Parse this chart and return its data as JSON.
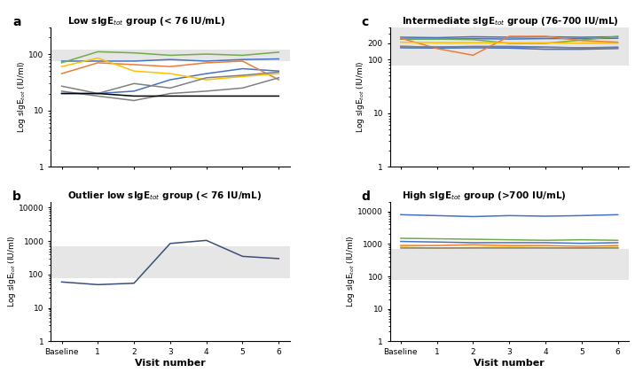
{
  "x_labels": [
    "Baseline",
    "1",
    "2",
    "3",
    "4",
    "5",
    "6"
  ],
  "x_vals": [
    0,
    1,
    2,
    3,
    4,
    5,
    6
  ],
  "panel_a_title": "Low sIgE$_{tot}$ group (< 76 IU/mL)",
  "panel_a_shading": [
    76,
    120
  ],
  "panel_a_lines": [
    {
      "color": "#4472C4",
      "data": [
        75,
        75,
        75,
        80,
        75,
        80,
        82
      ]
    },
    {
      "color": "#4472C4",
      "data": [
        20,
        20,
        22,
        35,
        45,
        55,
        50
      ]
    },
    {
      "color": "#70AD47",
      "data": [
        70,
        110,
        105,
        95,
        100,
        95,
        108
      ]
    },
    {
      "color": "#ED7D31",
      "data": [
        45,
        70,
        65,
        60,
        70,
        75,
        35
      ]
    },
    {
      "color": "#FFC000",
      "data": [
        60,
        85,
        50,
        45,
        35,
        40,
        45
      ]
    },
    {
      "color": "#808080",
      "data": [
        27,
        20,
        30,
        25,
        38,
        42,
        48
      ]
    },
    {
      "color": "#808080",
      "data": [
        22,
        18,
        15,
        20,
        22,
        25,
        38
      ]
    },
    {
      "color": "#000000",
      "data": [
        20,
        20,
        18,
        18,
        18,
        18,
        18
      ]
    }
  ],
  "panel_b_title": "Outlier low sIgE$_{tot}$ group (< 76 IU/mL)",
  "panel_b_shading": [
    76,
    700
  ],
  "panel_b_line": {
    "color": "#3B4F7A",
    "data": [
      60,
      50,
      55,
      850,
      1050,
      350,
      300
    ]
  },
  "panel_b_x_vals": [
    0,
    1,
    2,
    3,
    4,
    5,
    6
  ],
  "panel_c_title": "Intermediate sIgE$_{tot}$ group (76-700 IU/mL)",
  "panel_c_shading": [
    76,
    700
  ],
  "panel_c_lines": [
    {
      "color": "#4472C4",
      "data": [
        260,
        255,
        265,
        260,
        265,
        260,
        265
      ]
    },
    {
      "color": "#4472C4",
      "data": [
        240,
        240,
        245,
        240,
        245,
        245,
        248
      ]
    },
    {
      "color": "#4472C4",
      "data": [
        175,
        170,
        175,
        175,
        170,
        165,
        170
      ]
    },
    {
      "color": "#4472C4",
      "data": [
        165,
        163,
        165,
        163,
        155,
        155,
        160
      ]
    },
    {
      "color": "#70AD47",
      "data": [
        240,
        240,
        235,
        200,
        200,
        230,
        270
      ]
    },
    {
      "color": "#ED7D31",
      "data": [
        250,
        160,
        120,
        270,
        270,
        225,
        210
      ]
    },
    {
      "color": "#FFC000",
      "data": [
        210,
        205,
        205,
        205,
        205,
        200,
        200
      ]
    },
    {
      "color": "#808080",
      "data": [
        175,
        170,
        172,
        170,
        168,
        165,
        165
      ]
    }
  ],
  "panel_d_title": "High sIgE$_{tot}$ group (>700 IU/mL)",
  "panel_d_shading": [
    76,
    700
  ],
  "panel_d_lines": [
    {
      "color": "#4472C4",
      "data": [
        8000,
        7500,
        7000,
        7500,
        7200,
        7500,
        8000
      ]
    },
    {
      "color": "#4472C4",
      "data": [
        1200,
        1150,
        1100,
        1100,
        1100,
        1050,
        1100
      ]
    },
    {
      "color": "#70AD47",
      "data": [
        1500,
        1450,
        1400,
        1350,
        1300,
        1350,
        1300
      ]
    },
    {
      "color": "#ED7D31",
      "data": [
        900,
        900,
        950,
        900,
        900,
        850,
        900
      ]
    },
    {
      "color": "#FFC000",
      "data": [
        800,
        750,
        780,
        800,
        780,
        760,
        800
      ]
    },
    {
      "color": "#808080",
      "data": [
        750,
        750,
        750,
        750,
        750,
        750,
        750
      ]
    }
  ],
  "ylabel": "Log sIgE$_{tot}$ (IU/ml)",
  "xlabel": "Visit number",
  "background_color": "#ffffff",
  "shading_color": "#D3D3D3"
}
